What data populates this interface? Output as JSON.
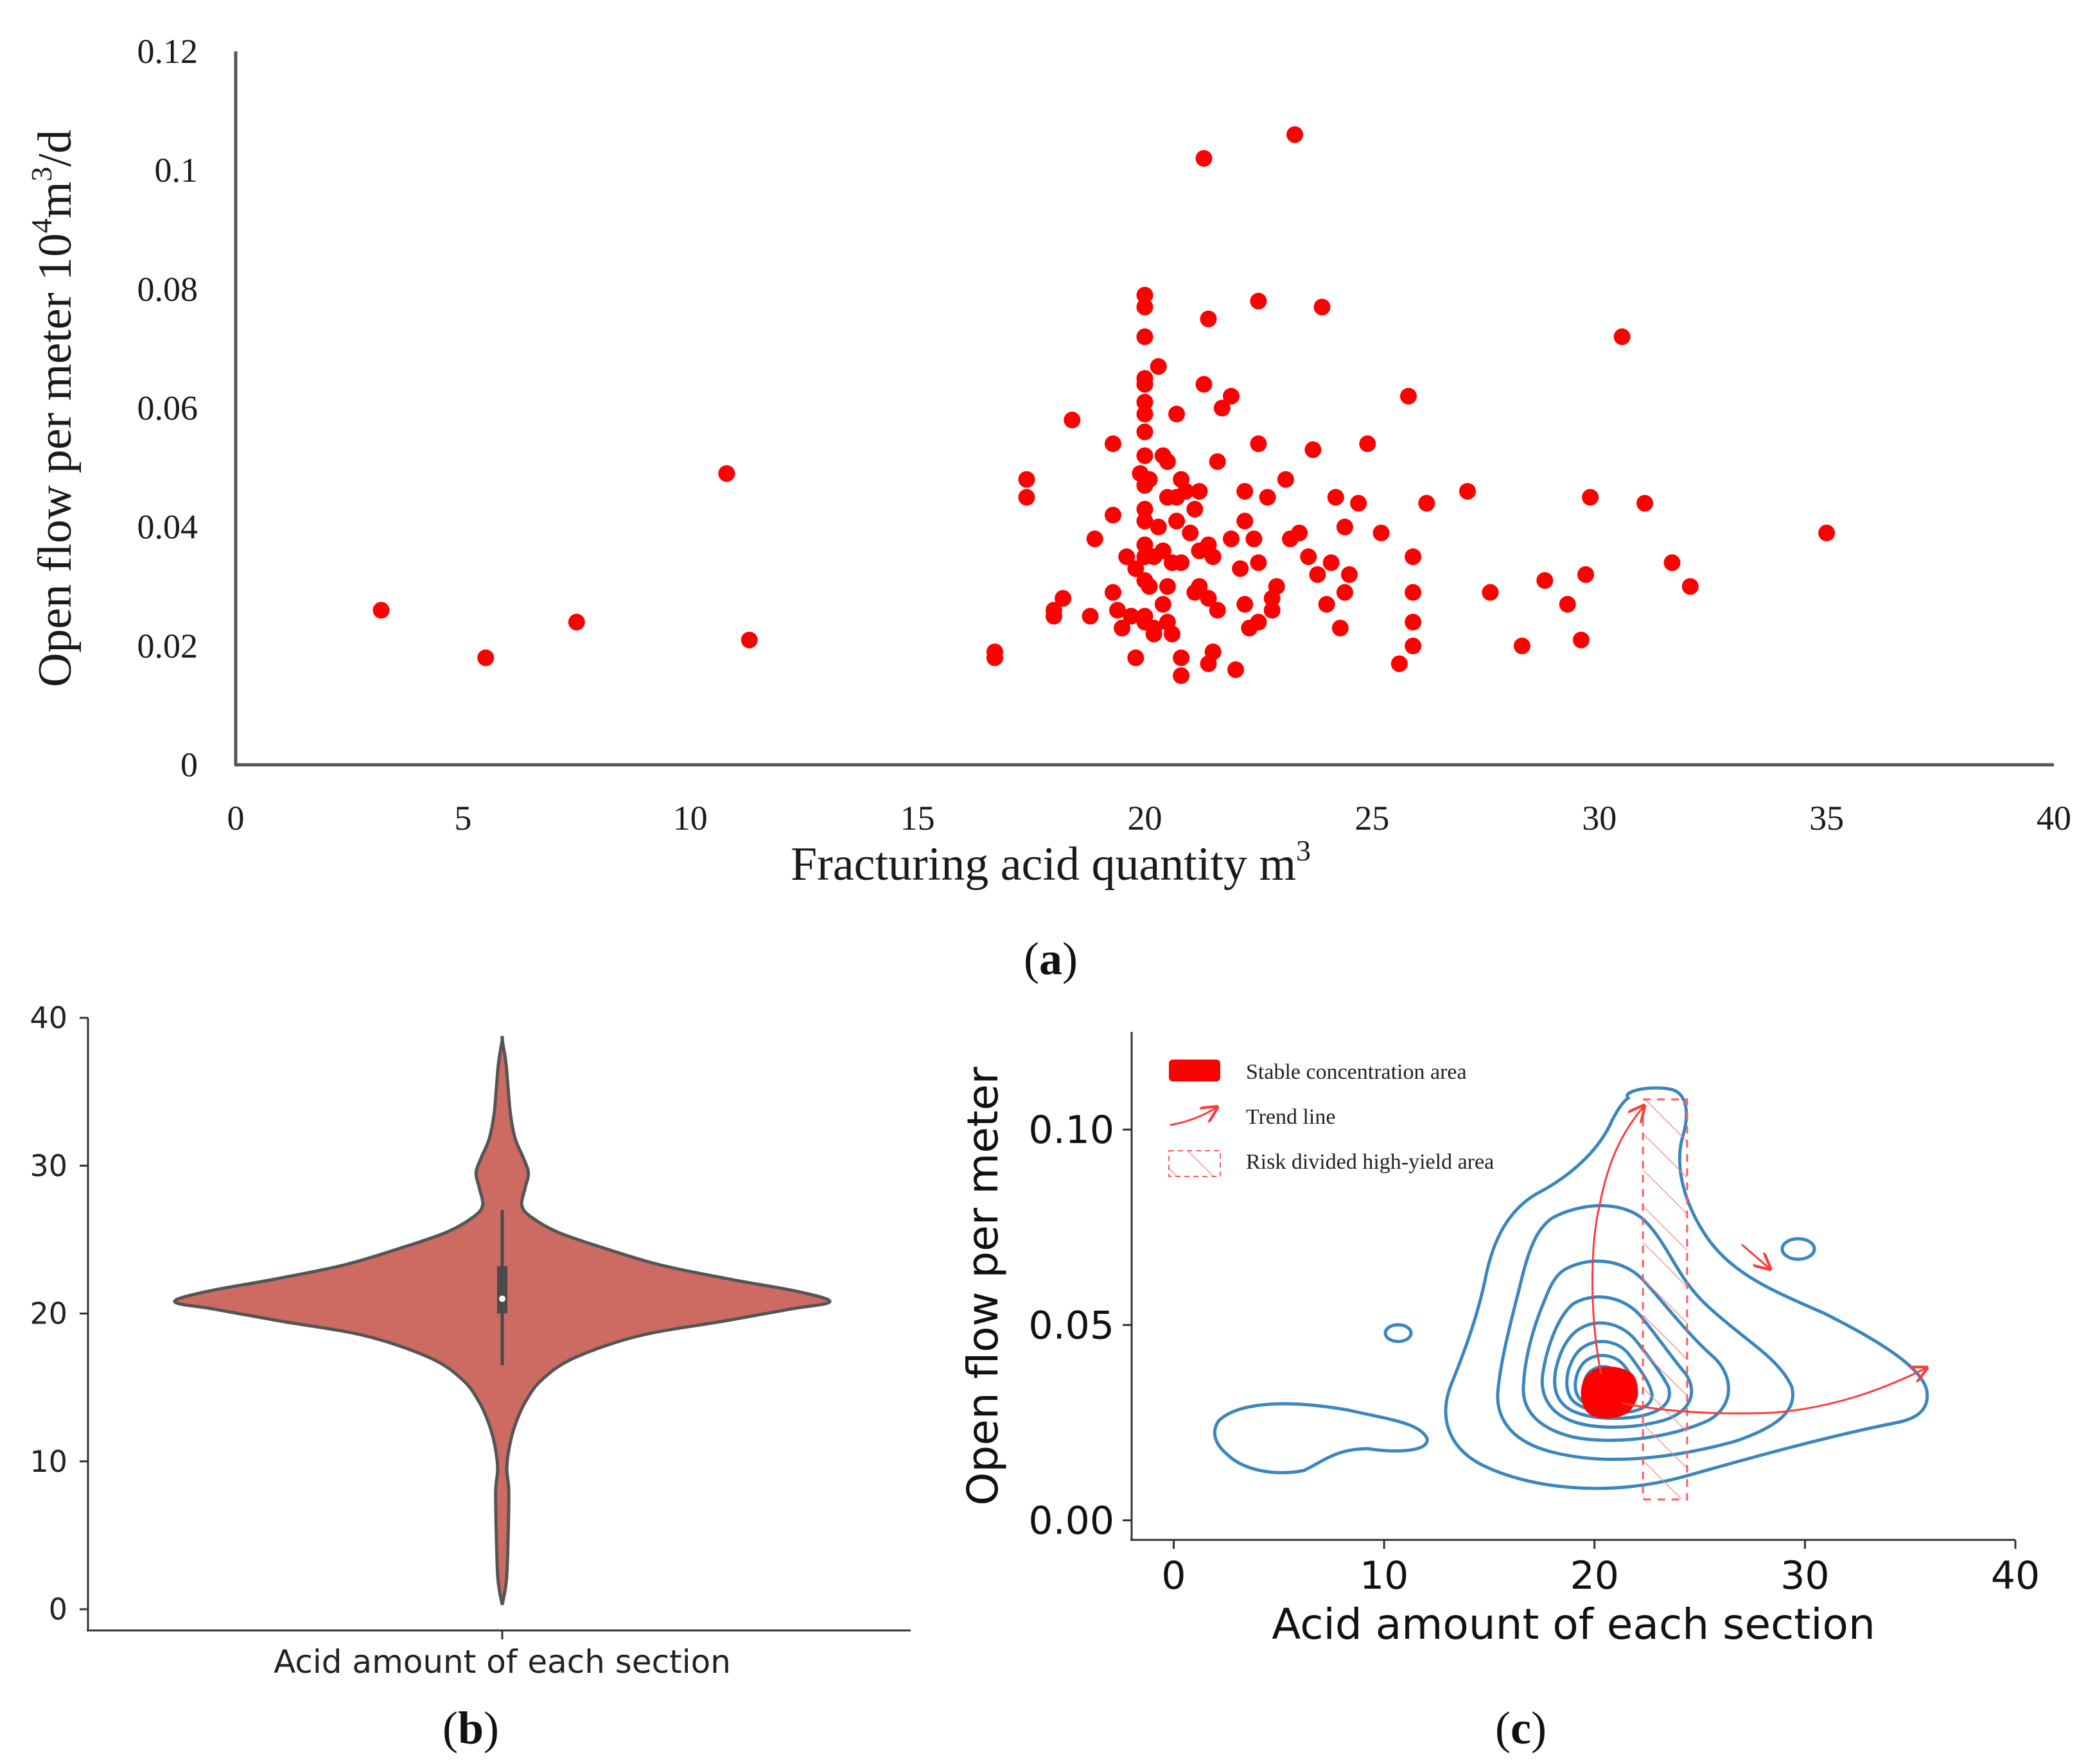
{
  "panels": {
    "a": {
      "label_open": "(",
      "label_letter": "a",
      "label_close": ")"
    },
    "b": {
      "label_open": "(",
      "label_letter": "b",
      "label_close": ")"
    },
    "c": {
      "label_open": "(",
      "label_letter": "c",
      "label_close": ")"
    }
  },
  "chart_data": [
    {
      "panel": "a",
      "type": "scatter",
      "title": "",
      "xlabel": "Fracturing acid quantity  m",
      "xlabel_sup": "3",
      "ylabel_parts": [
        "Open flow per meter  10",
        "4",
        "m",
        "3",
        "/d"
      ],
      "xlim": [
        0,
        40
      ],
      "ylim": [
        0,
        0.12
      ],
      "xticks": [
        "0",
        "5",
        "10",
        "15",
        "20",
        "25",
        "30",
        "35",
        "40"
      ],
      "yticks": [
        "0",
        "0.02",
        "0.04",
        "0.06",
        "0.08",
        "0.1",
        "0.12"
      ],
      "marker_color": "#ff0000",
      "points": [
        [
          3.2,
          0.026
        ],
        [
          5.5,
          0.018
        ],
        [
          7.5,
          0.024
        ],
        [
          10.8,
          0.049
        ],
        [
          11.3,
          0.021
        ],
        [
          16.7,
          0.019
        ],
        [
          16.7,
          0.018
        ],
        [
          17.4,
          0.048
        ],
        [
          17.4,
          0.045
        ],
        [
          18.0,
          0.026
        ],
        [
          18.0,
          0.025
        ],
        [
          18.2,
          0.028
        ],
        [
          18.4,
          0.058
        ],
        [
          18.8,
          0.025
        ],
        [
          18.9,
          0.038
        ],
        [
          19.3,
          0.054
        ],
        [
          19.3,
          0.042
        ],
        [
          19.3,
          0.029
        ],
        [
          19.4,
          0.026
        ],
        [
          19.5,
          0.023
        ],
        [
          19.6,
          0.035
        ],
        [
          19.7,
          0.025
        ],
        [
          19.8,
          0.018
        ],
        [
          19.8,
          0.033
        ],
        [
          19.9,
          0.049
        ],
        [
          20.0,
          0.079
        ],
        [
          20.0,
          0.077
        ],
        [
          20.0,
          0.072
        ],
        [
          20.0,
          0.065
        ],
        [
          20.0,
          0.064
        ],
        [
          20.0,
          0.061
        ],
        [
          20.0,
          0.059
        ],
        [
          20.0,
          0.056
        ],
        [
          20.0,
          0.052
        ],
        [
          20.0,
          0.047
        ],
        [
          20.0,
          0.043
        ],
        [
          20.0,
          0.041
        ],
        [
          20.0,
          0.037
        ],
        [
          20.0,
          0.035
        ],
        [
          20.0,
          0.031
        ],
        [
          20.0,
          0.025
        ],
        [
          20.0,
          0.024
        ],
        [
          20.1,
          0.03
        ],
        [
          20.1,
          0.048
        ],
        [
          20.2,
          0.035
        ],
        [
          20.2,
          0.022
        ],
        [
          20.2,
          0.023
        ],
        [
          20.3,
          0.04
        ],
        [
          20.3,
          0.067
        ],
        [
          20.4,
          0.052
        ],
        [
          20.4,
          0.036
        ],
        [
          20.4,
          0.027
        ],
        [
          20.5,
          0.051
        ],
        [
          20.5,
          0.045
        ],
        [
          20.5,
          0.03
        ],
        [
          20.5,
          0.024
        ],
        [
          20.6,
          0.034
        ],
        [
          20.6,
          0.022
        ],
        [
          20.7,
          0.059
        ],
        [
          20.7,
          0.045
        ],
        [
          20.7,
          0.041
        ],
        [
          20.8,
          0.048
        ],
        [
          20.8,
          0.034
        ],
        [
          20.8,
          0.018
        ],
        [
          20.8,
          0.015
        ],
        [
          20.9,
          0.046
        ],
        [
          21.0,
          0.039
        ],
        [
          21.1,
          0.029
        ],
        [
          21.1,
          0.043
        ],
        [
          21.2,
          0.036
        ],
        [
          21.2,
          0.03
        ],
        [
          21.2,
          0.046
        ],
        [
          21.3,
          0.064
        ],
        [
          21.3,
          0.102
        ],
        [
          21.4,
          0.075
        ],
        [
          21.4,
          0.037
        ],
        [
          21.4,
          0.028
        ],
        [
          21.4,
          0.017
        ],
        [
          21.5,
          0.019
        ],
        [
          21.5,
          0.035
        ],
        [
          21.6,
          0.026
        ],
        [
          21.6,
          0.051
        ],
        [
          21.7,
          0.06
        ],
        [
          21.9,
          0.062
        ],
        [
          21.9,
          0.038
        ],
        [
          22.0,
          0.016
        ],
        [
          22.1,
          0.033
        ],
        [
          22.2,
          0.046
        ],
        [
          22.2,
          0.041
        ],
        [
          22.2,
          0.027
        ],
        [
          22.3,
          0.023
        ],
        [
          22.4,
          0.038
        ],
        [
          22.5,
          0.054
        ],
        [
          22.5,
          0.034
        ],
        [
          22.5,
          0.024
        ],
        [
          22.5,
          0.078
        ],
        [
          22.7,
          0.045
        ],
        [
          22.8,
          0.026
        ],
        [
          22.8,
          0.028
        ],
        [
          22.9,
          0.03
        ],
        [
          23.1,
          0.048
        ],
        [
          23.2,
          0.038
        ],
        [
          23.3,
          0.106
        ],
        [
          23.4,
          0.039
        ],
        [
          23.6,
          0.035
        ],
        [
          23.7,
          0.053
        ],
        [
          23.8,
          0.032
        ],
        [
          23.9,
          0.077
        ],
        [
          24.0,
          0.027
        ],
        [
          24.1,
          0.034
        ],
        [
          24.2,
          0.045
        ],
        [
          24.3,
          0.023
        ],
        [
          24.4,
          0.04
        ],
        [
          24.4,
          0.029
        ],
        [
          24.5,
          0.032
        ],
        [
          24.7,
          0.044
        ],
        [
          24.9,
          0.054
        ],
        [
          25.2,
          0.039
        ],
        [
          25.6,
          0.017
        ],
        [
          25.8,
          0.062
        ],
        [
          25.9,
          0.035
        ],
        [
          25.9,
          0.029
        ],
        [
          25.9,
          0.024
        ],
        [
          25.9,
          0.02
        ],
        [
          26.2,
          0.044
        ],
        [
          27.1,
          0.046
        ],
        [
          27.6,
          0.029
        ],
        [
          28.3,
          0.02
        ],
        [
          28.8,
          0.031
        ],
        [
          29.3,
          0.027
        ],
        [
          29.6,
          0.021
        ],
        [
          29.7,
          0.032
        ],
        [
          29.8,
          0.045
        ],
        [
          30.5,
          0.072
        ],
        [
          31.0,
          0.044
        ],
        [
          31.6,
          0.034
        ],
        [
          32.0,
          0.03
        ],
        [
          35.0,
          0.039
        ]
      ]
    },
    {
      "panel": "b",
      "type": "violin",
      "title": "",
      "xlabel": "Acid amount of each section",
      "ylabel": "",
      "ylim": [
        0,
        40
      ],
      "yticks": [
        "0",
        "10",
        "20",
        "30",
        "40"
      ],
      "fill_color": "#cd6b63",
      "min": 0.3,
      "max": 38.5,
      "q1": 20.0,
      "median": 21.0,
      "q3": 23.2,
      "whisker_low": 16.5,
      "whisker_high": 27.0,
      "density_profile": [
        [
          0.3,
          0.0
        ],
        [
          2.0,
          0.013
        ],
        [
          5.0,
          0.018
        ],
        [
          8.0,
          0.02
        ],
        [
          9.5,
          0.014
        ],
        [
          11.0,
          0.022
        ],
        [
          12.5,
          0.04
        ],
        [
          14.0,
          0.07
        ],
        [
          15.5,
          0.12
        ],
        [
          17.0,
          0.22
        ],
        [
          18.5,
          0.42
        ],
        [
          19.5,
          0.68
        ],
        [
          20.3,
          0.88
        ],
        [
          20.8,
          1.0
        ],
        [
          21.5,
          0.9
        ],
        [
          22.3,
          0.7
        ],
        [
          23.3,
          0.48
        ],
        [
          24.5,
          0.3
        ],
        [
          25.5,
          0.17
        ],
        [
          26.5,
          0.09
        ],
        [
          27.3,
          0.06
        ],
        [
          28.5,
          0.07
        ],
        [
          29.5,
          0.08
        ],
        [
          30.5,
          0.065
        ],
        [
          31.8,
          0.04
        ],
        [
          33.5,
          0.025
        ],
        [
          35.5,
          0.017
        ],
        [
          37.0,
          0.011
        ],
        [
          38.5,
          0.0
        ]
      ]
    },
    {
      "panel": "c",
      "type": "contour",
      "title": "",
      "xlabel": "Acid amount of each section",
      "ylabel": "Open flow per meter",
      "xlim": [
        -2,
        40
      ],
      "ylim": [
        -0.005,
        0.125
      ],
      "xticks": [
        "0",
        "10",
        "20",
        "30",
        "40"
      ],
      "yticks": [
        "0.00",
        "0.05",
        "0.10"
      ],
      "contour_color": "#3a86bd",
      "accent_color": "#ff2a2a",
      "legend_position": "upper-left",
      "legend": [
        "Stable concentration area",
        "Trend line",
        "Risk divided high-yield area"
      ],
      "density_peak": [
        20.8,
        0.032
      ],
      "risk_area_x": [
        22.3,
        24.4
      ],
      "trend_lines": [
        [
          [
            20.5,
            0.029
          ],
          [
            20.3,
            0.06
          ],
          [
            21.2,
            0.09
          ],
          [
            22.3,
            0.107
          ]
        ],
        [
          [
            21.0,
            0.03
          ],
          [
            25.0,
            0.027
          ],
          [
            30.0,
            0.028
          ],
          [
            33.5,
            0.036
          ],
          [
            35.6,
            0.04
          ]
        ]
      ]
    }
  ]
}
